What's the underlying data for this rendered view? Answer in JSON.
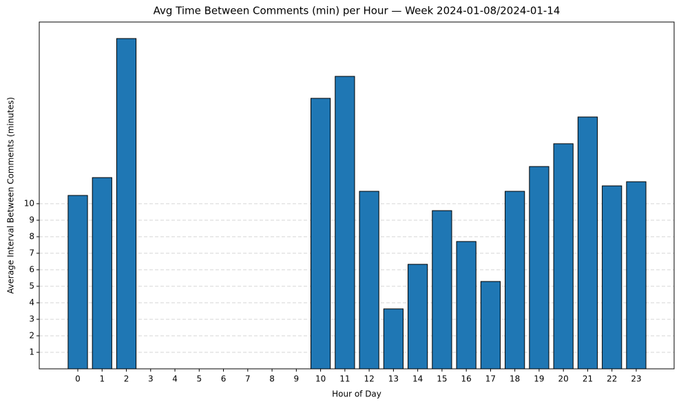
{
  "chart_data": {
    "type": "bar",
    "title": "Avg Time Between Comments (min) per Hour — Week 2024-01-08/2024-01-14",
    "x_label": "Hour of Day",
    "y_label": "Average Interval Between Comments (minutes)",
    "categories": [
      "0",
      "1",
      "2",
      "3",
      "4",
      "5",
      "6",
      "7",
      "8",
      "9",
      "10",
      "11",
      "12",
      "13",
      "14",
      "15",
      "16",
      "17",
      "18",
      "19",
      "20",
      "21",
      "22",
      "23"
    ],
    "values": [
      10.5,
      11.58,
      20.0,
      0,
      0,
      0,
      0,
      0,
      0,
      0,
      16.38,
      17.71,
      10.75,
      3.63,
      6.33,
      9.58,
      7.71,
      5.29,
      10.75,
      12.25,
      13.63,
      15.25,
      11.08,
      11.33
    ],
    "color": "#1f77b4",
    "ylim": [
      0,
      21
    ],
    "yticks": [
      1,
      2,
      3,
      4,
      5,
      6,
      7,
      8,
      9,
      10
    ],
    "grid": true
  }
}
